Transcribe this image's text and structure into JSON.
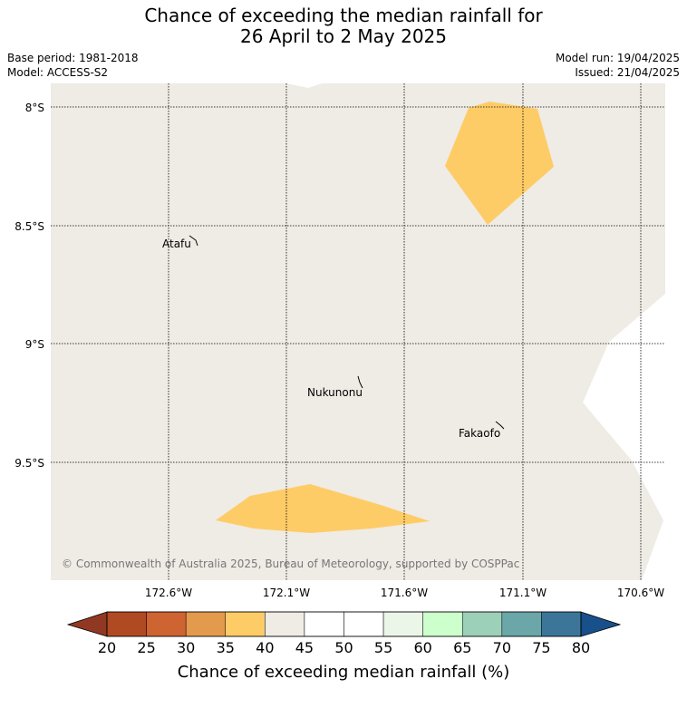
{
  "title_line1": "Chance of exceeding the median rainfall for",
  "title_line2": "26 April to 2 May 2025",
  "base_period": "Base period: 1981-2018",
  "model": "Model: ACCESS-S2",
  "model_run": "Model run: 19/04/2025",
  "issued": "Issued: 21/04/2025",
  "copyright": "© Commonwealth of Australia 2025, Bureau of Meteorology, supported by COSPPac",
  "lat_ticks": [
    "8°S",
    "8.5°S",
    "9°S",
    "9.5°S"
  ],
  "lon_ticks": [
    "172.6°W",
    "172.1°W",
    "171.6°W",
    "171.1°W",
    "170.6°W"
  ],
  "places": [
    "Atafu",
    "Nukunonu",
    "Fakaofo"
  ],
  "colorbar": {
    "ticks": [
      "20",
      "25",
      "30",
      "35",
      "40",
      "45",
      "50",
      "55",
      "60",
      "65",
      "70",
      "75",
      "80"
    ],
    "colors": [
      "#b04a23",
      "#cd6431",
      "#e39a4c",
      "#fecc66",
      "#efebe5",
      "#ffffff",
      "#ffffff",
      "#ecf6e8",
      "#ccffcc",
      "#9cd0b8",
      "#6ba6a8",
      "#3b7699"
    ],
    "under_color": "#913823",
    "over_color": "#17508a",
    "title": "Chance of exceeding median rainfall (%)"
  },
  "colors": {
    "land_background": "#efebe5",
    "category_35_40": "#fecc66"
  }
}
